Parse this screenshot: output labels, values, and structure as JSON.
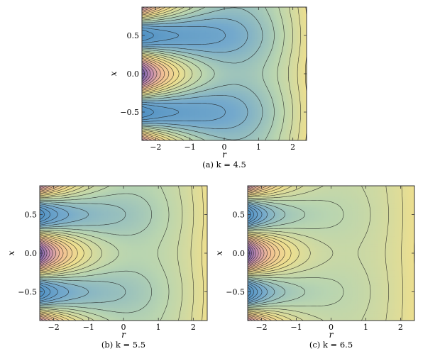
{
  "chart_data": [
    {
      "type": "contour",
      "parameter": {
        "symbol": "k",
        "value": 4.5
      },
      "caption": "(a) k = 4.5",
      "xlabel": "r",
      "ylabel": "x",
      "xlim": [
        -2.4,
        2.4
      ],
      "ylim": [
        -0.87,
        0.87
      ],
      "xticks": [
        "−2",
        "−1",
        "0",
        "1",
        "2"
      ],
      "yticks": [
        "−0.5",
        "0.0",
        "0.5"
      ],
      "grid": false,
      "colormap": [
        "#6a5aa8",
        "#c58db0",
        "#f2bf94",
        "#eddf8f",
        "#b9d5b0",
        "#74a9cc",
        "#4e8fc3"
      ]
    },
    {
      "type": "contour",
      "parameter": {
        "symbol": "k",
        "value": 5.5
      },
      "caption": "(b) k = 5.5",
      "xlabel": "r",
      "ylabel": "x",
      "xlim": [
        -2.4,
        2.4
      ],
      "ylim": [
        -0.87,
        0.87
      ],
      "xticks": [
        "−2",
        "−1",
        "0",
        "1",
        "2"
      ],
      "yticks": [
        "−0.5",
        "0.0",
        "0.5"
      ],
      "grid": false,
      "colormap": [
        "#6a5aa8",
        "#c58db0",
        "#f2bf94",
        "#eddf8f",
        "#b9d5b0",
        "#74a9cc",
        "#4e8fc3"
      ]
    },
    {
      "type": "contour",
      "parameter": {
        "symbol": "k",
        "value": 6.5
      },
      "caption": "(c) k = 6.5",
      "xlabel": "r",
      "ylabel": "x",
      "xlim": [
        -2.4,
        2.4
      ],
      "ylim": [
        -0.87,
        0.87
      ],
      "xticks": [
        "−2",
        "−1",
        "0",
        "1",
        "2"
      ],
      "yticks": [
        "−0.5",
        "0.0",
        "0.5"
      ],
      "grid": false,
      "colormap": [
        "#6a5aa8",
        "#c58db0",
        "#f2bf94",
        "#eddf8f",
        "#b9d5b0",
        "#74a9cc",
        "#4e8fc3"
      ]
    }
  ]
}
